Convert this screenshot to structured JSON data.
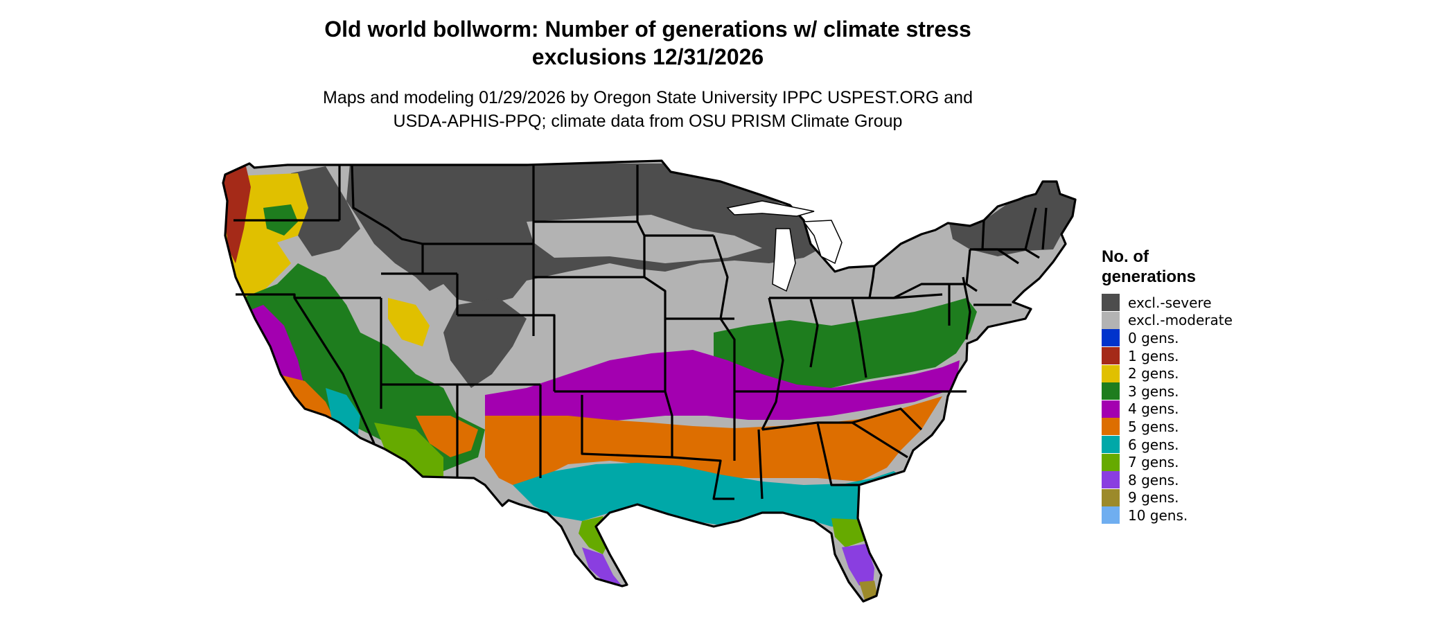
{
  "title_line1": "Old world bollworm: Number of generations w/ climate stress",
  "title_line2": "exclusions 12/31/2026",
  "subtitle_line1": "Maps and modeling 01/29/2026 by Oregon State University IPPC USPEST.ORG and",
  "subtitle_line2": "USDA-APHIS-PPQ; climate data from OSU PRISM Climate Group",
  "legend": {
    "title_line1": "No. of",
    "title_line2": "generations",
    "items": [
      {
        "label": "excl.-severe",
        "color": "#4d4d4d"
      },
      {
        "label": "excl.-moderate",
        "color": "#b3b3b3"
      },
      {
        "label": "0 gens.",
        "color": "#0033cc"
      },
      {
        "label": "1 gens.",
        "color": "#a52a18"
      },
      {
        "label": "2 gens.",
        "color": "#e0c000"
      },
      {
        "label": "3 gens.",
        "color": "#1e7d1e"
      },
      {
        "label": "4 gens.",
        "color": "#a300b0"
      },
      {
        "label": "5 gens.",
        "color": "#dd6e00"
      },
      {
        "label": "6 gens.",
        "color": "#00a8a8"
      },
      {
        "label": "7 gens.",
        "color": "#66aa00"
      },
      {
        "label": "8 gens.",
        "color": "#8a3ee0"
      },
      {
        "label": "9 gens.",
        "color": "#9c8a2a"
      },
      {
        "label": "10 gens.",
        "color": "#6faef0"
      }
    ]
  }
}
